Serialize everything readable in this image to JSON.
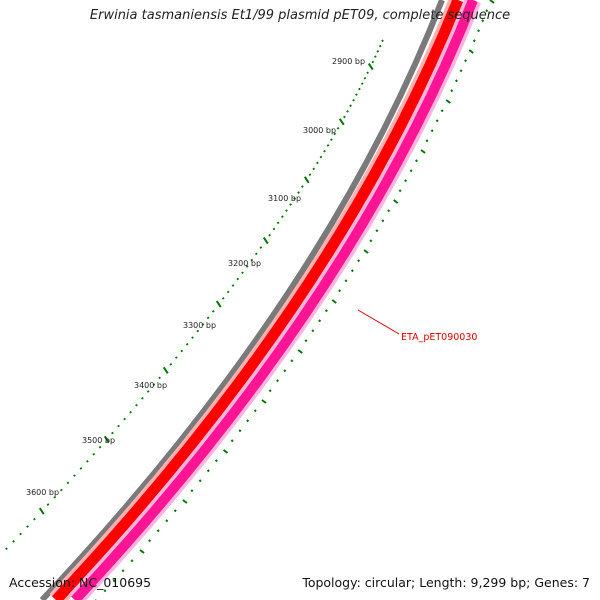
{
  "title": "Erwinia tasmaniensis Et1/99 plasmid pET09, complete sequence",
  "footer": {
    "accession": "Accession: NC_010695",
    "summary": "Topology: circular; Length: 9,299 bp; Genes: 7"
  },
  "colors": {
    "outer_ring": "#7a7a7a",
    "forward_gene": "#ff0000",
    "reverse_gene": "#ff1493",
    "tick": "#007700",
    "gene_label": "#e00000"
  },
  "scale": {
    "tick_labels": [
      "2900 bp",
      "3000 bp",
      "3100 bp",
      "3200 bp",
      "3300 bp",
      "3400 bp",
      "3500 bp",
      "3600 bp"
    ]
  },
  "genes": [
    {
      "label": "ETA_pET090030"
    }
  ]
}
